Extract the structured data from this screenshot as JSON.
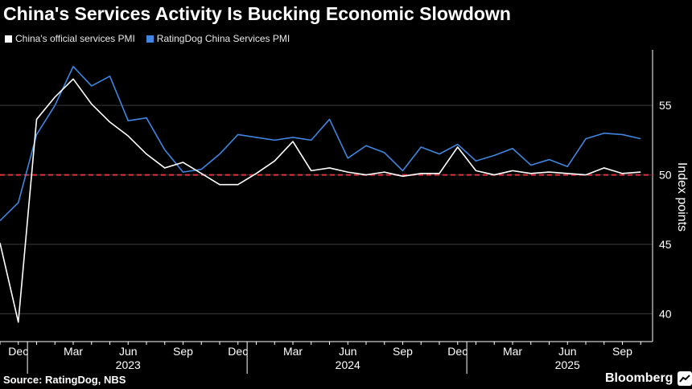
{
  "header": {
    "title": "China's Services Activity Is Bucking Economic Slowdown"
  },
  "footer": {
    "source": "Source: RatingDog, NBS",
    "brand": "Bloomberg"
  },
  "colors": {
    "background": "#000000",
    "official": "#ffffff",
    "ratingdog": "#3f86e0",
    "reference": "#e0323c",
    "axis": "#ffffff"
  },
  "chart_data": {
    "type": "line",
    "title": "China's Services Activity Is Bucking Economic Slowdown",
    "ylabel": "Index points",
    "xlabel": "",
    "ylim": [
      38,
      59
    ],
    "yticks": [
      40,
      45,
      50,
      55
    ],
    "reference_line": 50,
    "x": [
      "2022-11",
      "2022-12",
      "2023-01",
      "2023-02",
      "2023-03",
      "2023-04",
      "2023-05",
      "2023-06",
      "2023-07",
      "2023-08",
      "2023-09",
      "2023-10",
      "2023-11",
      "2023-12",
      "2024-01",
      "2024-02",
      "2024-03",
      "2024-04",
      "2024-05",
      "2024-06",
      "2024-07",
      "2024-08",
      "2024-09",
      "2024-10",
      "2024-11",
      "2024-12",
      "2025-01",
      "2025-02",
      "2025-03",
      "2025-04",
      "2025-05",
      "2025-06",
      "2025-07",
      "2025-08",
      "2025-09",
      "2025-10"
    ],
    "month_ticks": [
      {
        "label": "Dec",
        "index": 1
      },
      {
        "label": "Mar",
        "index": 4
      },
      {
        "label": "Jun",
        "index": 7
      },
      {
        "label": "Sep",
        "index": 10
      },
      {
        "label": "Dec",
        "index": 13
      },
      {
        "label": "Mar",
        "index": 16
      },
      {
        "label": "Jun",
        "index": 19
      },
      {
        "label": "Sep",
        "index": 22
      },
      {
        "label": "Dec",
        "index": 25
      },
      {
        "label": "Mar",
        "index": 28
      },
      {
        "label": "Jun",
        "index": 31
      },
      {
        "label": "Sep",
        "index": 34
      }
    ],
    "year_ticks": [
      {
        "label": "2023",
        "index": 7
      },
      {
        "label": "2024",
        "index": 19
      },
      {
        "label": "2025",
        "index": 31
      }
    ],
    "series": [
      {
        "name": "China's official services PMI",
        "color": "#ffffff",
        "values": [
          45.1,
          39.4,
          54.0,
          55.6,
          56.9,
          55.1,
          53.8,
          52.8,
          51.5,
          50.5,
          50.9,
          50.1,
          49.3,
          49.3,
          50.1,
          51.0,
          52.4,
          50.3,
          50.5,
          50.2,
          50.0,
          50.2,
          49.9,
          50.1,
          50.1,
          52.0,
          50.3,
          50.0,
          50.3,
          50.1,
          50.2,
          50.1,
          50.0,
          50.5,
          50.1,
          50.2
        ]
      },
      {
        "name": "RatingDog China Services PMI",
        "color": "#3f86e0",
        "values": [
          46.7,
          48.0,
          52.9,
          55.0,
          57.8,
          56.4,
          57.1,
          53.9,
          54.1,
          51.8,
          50.2,
          50.4,
          51.5,
          52.9,
          52.7,
          52.5,
          52.7,
          52.5,
          54.0,
          51.2,
          52.1,
          51.6,
          50.3,
          52.0,
          51.5,
          52.2,
          51.0,
          51.4,
          51.9,
          50.7,
          51.1,
          50.6,
          52.6,
          53.0,
          52.9,
          52.6
        ]
      }
    ]
  }
}
